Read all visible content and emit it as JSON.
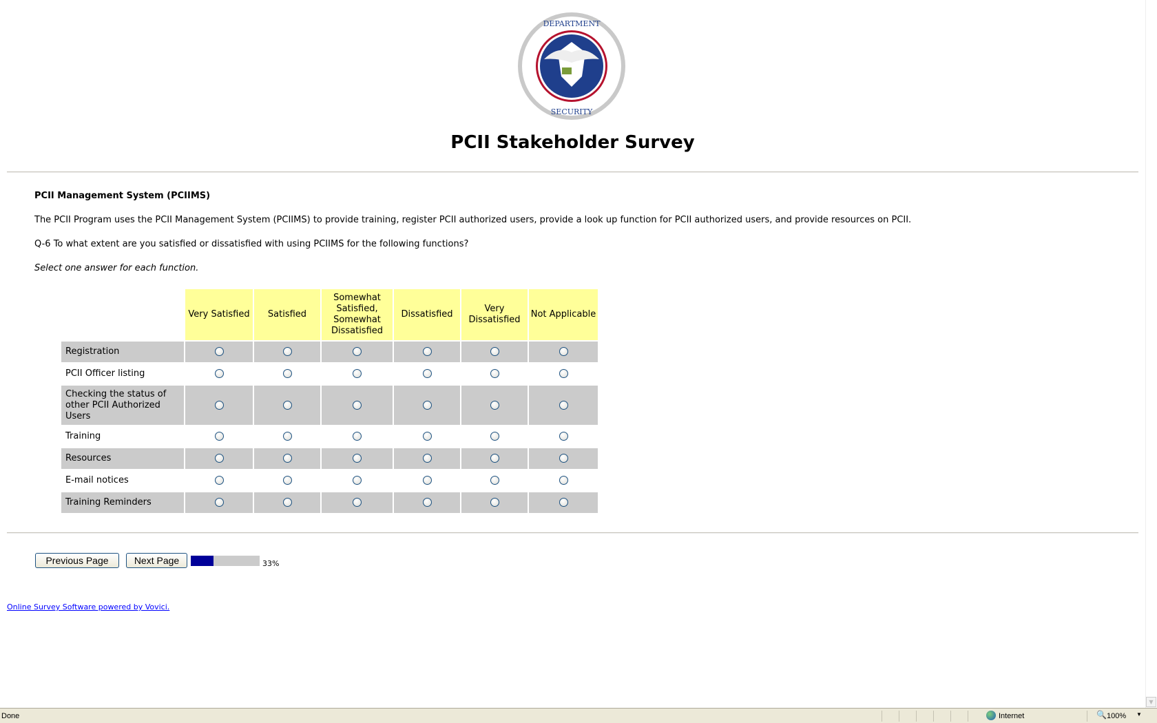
{
  "logo": {
    "text": "U.S. DEPARTMENT OF HOMELAND SECURITY"
  },
  "title": "PCII Stakeholder Survey",
  "section_title": "PCII Management System (PCIIMS)",
  "intro": "The PCII Program uses the PCII Management System (PCIIMS) to provide training, register PCII authorized users, provide a look up function for PCII authorized users, and provide resources on PCII.",
  "question": "Q-6 To what extent are you satisfied or dissatisfied with using PCIIMS for the following functions?",
  "instruction": "Select one answer for each function.",
  "columns": [
    "Very Satisfied",
    "Satisfied",
    "Somewhat Satisfied, Somewhat Dissatisfied",
    "Dissatisfied",
    "Very Dissatisfied",
    "Not Applicable"
  ],
  "rows": [
    "Registration",
    "PCII Officer listing",
    "Checking the status of other PCII Authorized Users",
    "Training",
    "Resources",
    "E-mail notices",
    "Training Reminders"
  ],
  "nav": {
    "previous": "Previous Page",
    "next": "Next Page",
    "progress_percent": 33,
    "progress_label": "33%"
  },
  "footer_link": "Online Survey Software powered by Vovici.",
  "status_bar": {
    "status": "Done",
    "zone": "Internet",
    "zoom": "100%"
  },
  "colors": {
    "header_bg": "#ffff99",
    "row_alt": "#cbcbcb",
    "progress": "#000099"
  }
}
